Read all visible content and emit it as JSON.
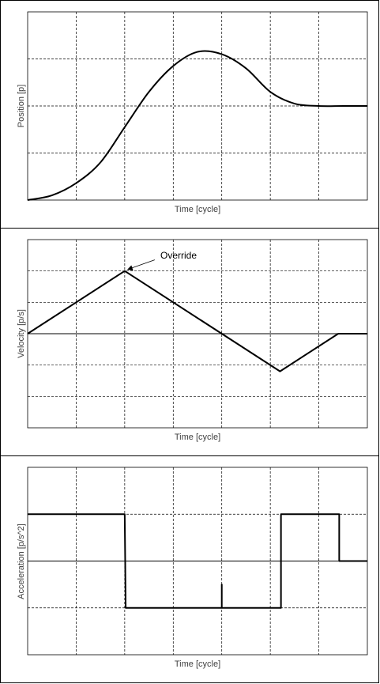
{
  "chart_data": [
    {
      "type": "line",
      "xlabel": "Time [cycle]",
      "ylabel": "Position [p]",
      "grid": true,
      "xlim": [
        0,
        7
      ],
      "ylim": [
        0,
        4
      ],
      "x": [
        0,
        0.5,
        1,
        1.5,
        2,
        2.5,
        3,
        3.5,
        4,
        4.5,
        5,
        5.5,
        6,
        6.5,
        7
      ],
      "series": [
        {
          "values": [
            0,
            0.1,
            0.36,
            0.8,
            1.55,
            2.3,
            2.85,
            3.15,
            3.1,
            2.8,
            2.3,
            2.05,
            2,
            2,
            2
          ]
        }
      ]
    },
    {
      "type": "line",
      "xlabel": "Time [cycle]",
      "ylabel": "Velocity [p/s]",
      "grid": true,
      "xlim": [
        0,
        7
      ],
      "ylim": [
        -3,
        3
      ],
      "zero_line": true,
      "x": [
        0,
        2,
        5.2,
        6.4,
        7
      ],
      "series": [
        {
          "values": [
            0,
            2,
            -1.2,
            0,
            0
          ]
        }
      ],
      "annotations": [
        {
          "text": "Override",
          "x": 2,
          "y": 2
        }
      ]
    },
    {
      "type": "line",
      "xlabel": "Time [cycle]",
      "ylabel": "Acceleration [p/s^2]",
      "grid": true,
      "xlim": [
        0,
        7
      ],
      "ylim": [
        -2,
        2
      ],
      "zero_line": true,
      "step": true,
      "x": [
        0,
        2,
        2.02,
        4,
        4,
        4,
        5.22,
        5.22,
        6.42,
        6.42,
        7
      ],
      "series": [
        {
          "values": [
            1,
            1,
            -1,
            -1,
            -0.5,
            -1,
            -1,
            1,
            1,
            0,
            0
          ]
        }
      ]
    }
  ],
  "colors": {
    "line": "#000000",
    "grid": "#000000",
    "frame": "#000000",
    "label": "#404040"
  }
}
